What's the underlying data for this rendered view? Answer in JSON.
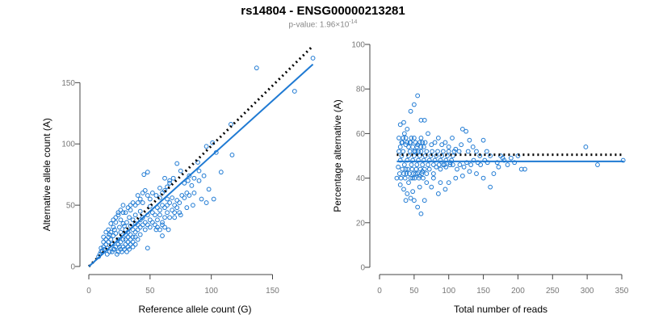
{
  "title": "rs14804 - ENSG00000213281",
  "subtitle": {
    "prefix": "p-value: 1.96×10",
    "exponent": "-14"
  },
  "colors": {
    "points": "#1f7ad3",
    "fit_line": "#1f7ad3",
    "reference_line": "#000000",
    "axis": "#444444"
  },
  "chart_data": [
    {
      "type": "scatter",
      "xlabel": "Reference allele count (G)",
      "ylabel": "Alternative allele count (A)",
      "xlim": [
        0,
        180
      ],
      "ylim": [
        0,
        170
      ],
      "xticks": [
        0,
        50,
        100,
        150
      ],
      "yticks": [
        0,
        50,
        100,
        150
      ],
      "fit_line": {
        "from": [
          0,
          0
        ],
        "to": [
          183,
          165
        ]
      },
      "reference_line": {
        "from": [
          0,
          0
        ],
        "to": [
          183,
          180
        ],
        "style": "dotted"
      },
      "points": [
        [
          137,
          162
        ],
        [
          183,
          170
        ],
        [
          168,
          143
        ],
        [
          116,
          116
        ],
        [
          117,
          91
        ],
        [
          101,
          101
        ],
        [
          104,
          93
        ],
        [
          108,
          77
        ],
        [
          96,
          98
        ],
        [
          89,
          85
        ],
        [
          98,
          63
        ],
        [
          102,
          55
        ],
        [
          86,
          60
        ],
        [
          90,
          78
        ],
        [
          75,
          78
        ],
        [
          72,
          84
        ],
        [
          81,
          70
        ],
        [
          69,
          72
        ],
        [
          66,
          68
        ],
        [
          64,
          55
        ],
        [
          62,
          62
        ],
        [
          58,
          64
        ],
        [
          55,
          58
        ],
        [
          52,
          60
        ],
        [
          50,
          49
        ],
        [
          48,
          77
        ],
        [
          45,
          75
        ],
        [
          44,
          52
        ],
        [
          42,
          45
        ],
        [
          40,
          52
        ],
        [
          38,
          42
        ],
        [
          36,
          38
        ],
        [
          34,
          46
        ],
        [
          33,
          40
        ],
        [
          31,
          36
        ],
        [
          29,
          33
        ],
        [
          28,
          44
        ],
        [
          26,
          28
        ],
        [
          25,
          32
        ],
        [
          24,
          22
        ],
        [
          22,
          27
        ],
        [
          21,
          30
        ],
        [
          20,
          25
        ],
        [
          19,
          18
        ],
        [
          18,
          22
        ],
        [
          17,
          26
        ],
        [
          16,
          20
        ],
        [
          15,
          15
        ],
        [
          14,
          18
        ],
        [
          13,
          14
        ],
        [
          12,
          16
        ],
        [
          11,
          13
        ],
        [
          10,
          15
        ],
        [
          12,
          24
        ],
        [
          14,
          28
        ],
        [
          16,
          30
        ],
        [
          18,
          35
        ],
        [
          20,
          38
        ],
        [
          22,
          40
        ],
        [
          24,
          44
        ],
        [
          26,
          38
        ],
        [
          28,
          35
        ],
        [
          30,
          30
        ],
        [
          32,
          28
        ],
        [
          34,
          33
        ],
        [
          36,
          30
        ],
        [
          38,
          35
        ],
        [
          40,
          34
        ],
        [
          42,
          38
        ],
        [
          44,
          40
        ],
        [
          46,
          36
        ],
        [
          48,
          42
        ],
        [
          50,
          38
        ],
        [
          52,
          44
        ],
        [
          54,
          42
        ],
        [
          56,
          48
        ],
        [
          58,
          46
        ],
        [
          60,
          50
        ],
        [
          62,
          48
        ],
        [
          64,
          50
        ],
        [
          66,
          52
        ],
        [
          68,
          56
        ],
        [
          70,
          50
        ],
        [
          72,
          54
        ],
        [
          74,
          52
        ],
        [
          76,
          58
        ],
        [
          78,
          56
        ],
        [
          80,
          60
        ],
        [
          82,
          58
        ],
        [
          84,
          66
        ],
        [
          56,
          38
        ],
        [
          58,
          42
        ],
        [
          60,
          36
        ],
        [
          62,
          40
        ],
        [
          64,
          44
        ],
        [
          66,
          40
        ],
        [
          68,
          46
        ],
        [
          70,
          44
        ],
        [
          72,
          48
        ],
        [
          74,
          44
        ],
        [
          50,
          55
        ],
        [
          48,
          58
        ],
        [
          46,
          62
        ],
        [
          44,
          60
        ],
        [
          42,
          55
        ],
        [
          40,
          58
        ],
        [
          38,
          50
        ],
        [
          36,
          52
        ],
        [
          34,
          50
        ],
        [
          32,
          48
        ],
        [
          30,
          44
        ],
        [
          28,
          50
        ],
        [
          26,
          46
        ],
        [
          24,
          42
        ],
        [
          22,
          36
        ],
        [
          20,
          32
        ],
        [
          18,
          28
        ],
        [
          16,
          24
        ],
        [
          14,
          22
        ],
        [
          12,
          20
        ],
        [
          10,
          12
        ],
        [
          9,
          10
        ],
        [
          8,
          8
        ],
        [
          30,
          22
        ],
        [
          32,
          24
        ],
        [
          34,
          26
        ],
        [
          36,
          24
        ],
        [
          38,
          28
        ],
        [
          40,
          30
        ],
        [
          42,
          32
        ],
        [
          44,
          34
        ],
        [
          46,
          30
        ],
        [
          48,
          34
        ],
        [
          50,
          32
        ],
        [
          52,
          36
        ],
        [
          54,
          34
        ],
        [
          56,
          32
        ],
        [
          58,
          30
        ],
        [
          60,
          34
        ],
        [
          62,
          32
        ],
        [
          48,
          15
        ],
        [
          55,
          30
        ],
        [
          60,
          25
        ],
        [
          65,
          30
        ],
        [
          70,
          40
        ],
        [
          75,
          42
        ],
        [
          80,
          48
        ],
        [
          85,
          50
        ],
        [
          92,
          55
        ],
        [
          96,
          52
        ],
        [
          78,
          68
        ],
        [
          82,
          74
        ],
        [
          86,
          72
        ],
        [
          90,
          70
        ],
        [
          94,
          74
        ],
        [
          66,
          70
        ],
        [
          64,
          65
        ],
        [
          62,
          72
        ],
        [
          60,
          60
        ],
        [
          58,
          56
        ],
        [
          24,
          18
        ],
        [
          26,
          20
        ],
        [
          28,
          22
        ],
        [
          30,
          26
        ],
        [
          32,
          20
        ],
        [
          34,
          22
        ],
        [
          36,
          20
        ],
        [
          38,
          24
        ],
        [
          40,
          22
        ],
        [
          42,
          26
        ],
        [
          20,
          14
        ],
        [
          22,
          16
        ],
        [
          24,
          12
        ],
        [
          26,
          14
        ],
        [
          28,
          16
        ],
        [
          30,
          18
        ],
        [
          32,
          16
        ],
        [
          34,
          18
        ],
        [
          36,
          16
        ],
        [
          38,
          18
        ],
        [
          15,
          10
        ],
        [
          17,
          12
        ],
        [
          19,
          12
        ],
        [
          21,
          14
        ],
        [
          23,
          10
        ],
        [
          25,
          16
        ],
        [
          27,
          12
        ],
        [
          29,
          14
        ],
        [
          31,
          12
        ],
        [
          33,
          14
        ]
      ]
    },
    {
      "type": "scatter",
      "xlabel": "Total number of reads",
      "ylabel": "Percentage alternative (A)",
      "xlim": [
        0,
        350
      ],
      "ylim": [
        0,
        100
      ],
      "xticks": [
        0,
        50,
        100,
        150,
        200,
        250,
        300,
        350
      ],
      "yticks": [
        0,
        20,
        40,
        60,
        80,
        100
      ],
      "fit_line": {
        "from": [
          25,
          47.5
        ],
        "to": [
          353,
          47.5
        ]
      },
      "reference_line": {
        "from": [
          25,
          50.5
        ],
        "to": [
          353,
          50.5
        ],
        "style": "dotted"
      },
      "points": [
        [
          55,
          77
        ],
        [
          50,
          73
        ],
        [
          45,
          70
        ],
        [
          35,
          65
        ],
        [
          30,
          64
        ],
        [
          40,
          62
        ],
        [
          60,
          66
        ],
        [
          65,
          66
        ],
        [
          70,
          60
        ],
        [
          120,
          62
        ],
        [
          125,
          61
        ],
        [
          130,
          57
        ],
        [
          150,
          57
        ],
        [
          50,
          58
        ],
        [
          45,
          56
        ],
        [
          38,
          55
        ],
        [
          33,
          56
        ],
        [
          28,
          58
        ],
        [
          55,
          55
        ],
        [
          60,
          54
        ],
        [
          75,
          55
        ],
        [
          80,
          56
        ],
        [
          90,
          55
        ],
        [
          100,
          54
        ],
        [
          110,
          53
        ],
        [
          115,
          52
        ],
        [
          140,
          52
        ],
        [
          160,
          50
        ],
        [
          175,
          50
        ],
        [
          200,
          50
        ],
        [
          298,
          54
        ],
        [
          352,
          48
        ],
        [
          315,
          46
        ],
        [
          190,
          49
        ],
        [
          180,
          48
        ],
        [
          170,
          47
        ],
        [
          165,
          42
        ],
        [
          160,
          36
        ],
        [
          150,
          40
        ],
        [
          140,
          42
        ],
        [
          130,
          43
        ],
        [
          120,
          41
        ],
        [
          110,
          40
        ],
        [
          100,
          38
        ],
        [
          95,
          35
        ],
        [
          85,
          33
        ],
        [
          75,
          36
        ],
        [
          65,
          30
        ],
        [
          60,
          24
        ],
        [
          55,
          27
        ],
        [
          50,
          30
        ],
        [
          45,
          31
        ],
        [
          40,
          33
        ],
        [
          35,
          35
        ],
        [
          30,
          37
        ],
        [
          25,
          40
        ],
        [
          42,
          38
        ],
        [
          48,
          40
        ],
        [
          52,
          42
        ],
        [
          58,
          41
        ],
        [
          62,
          43
        ],
        [
          68,
          42
        ],
        [
          72,
          44
        ],
        [
          78,
          42
        ],
        [
          82,
          45
        ],
        [
          88,
          44
        ],
        [
          92,
          46
        ],
        [
          96,
          45
        ],
        [
          102,
          47
        ],
        [
          106,
          46
        ],
        [
          112,
          44
        ],
        [
          116,
          46
        ],
        [
          122,
          45
        ],
        [
          126,
          47
        ],
        [
          132,
          46
        ],
        [
          136,
          48
        ],
        [
          142,
          47
        ],
        [
          146,
          46
        ],
        [
          152,
          48
        ],
        [
          156,
          47
        ],
        [
          30,
          48
        ],
        [
          32,
          50
        ],
        [
          34,
          52
        ],
        [
          36,
          46
        ],
        [
          38,
          44
        ],
        [
          40,
          48
        ],
        [
          42,
          50
        ],
        [
          44,
          52
        ],
        [
          46,
          46
        ],
        [
          48,
          48
        ],
        [
          50,
          50
        ],
        [
          52,
          52
        ],
        [
          54,
          46
        ],
        [
          56,
          48
        ],
        [
          58,
          50
        ],
        [
          60,
          52
        ],
        [
          62,
          46
        ],
        [
          64,
          48
        ],
        [
          66,
          50
        ],
        [
          68,
          52
        ],
        [
          70,
          46
        ],
        [
          72,
          48
        ],
        [
          74,
          50
        ],
        [
          76,
          52
        ],
        [
          78,
          46
        ],
        [
          80,
          48
        ],
        [
          82,
          50
        ],
        [
          84,
          52
        ],
        [
          86,
          46
        ],
        [
          88,
          48
        ],
        [
          90,
          50
        ],
        [
          92,
          52
        ],
        [
          94,
          46
        ],
        [
          96,
          48
        ],
        [
          98,
          50
        ],
        [
          100,
          52
        ],
        [
          102,
          46
        ],
        [
          104,
          48
        ],
        [
          106,
          50
        ],
        [
          108,
          52
        ],
        [
          27,
          45
        ],
        [
          29,
          42
        ],
        [
          31,
          40
        ],
        [
          33,
          44
        ],
        [
          35,
          42
        ],
        [
          37,
          40
        ],
        [
          39,
          42
        ],
        [
          41,
          44
        ],
        [
          43,
          42
        ],
        [
          45,
          40
        ],
        [
          47,
          44
        ],
        [
          49,
          42
        ],
        [
          51,
          40
        ],
        [
          53,
          44
        ],
        [
          55,
          42
        ],
        [
          57,
          40
        ],
        [
          59,
          44
        ],
        [
          61,
          42
        ],
        [
          63,
          40
        ],
        [
          65,
          44
        ],
        [
          28,
          52
        ],
        [
          30,
          54
        ],
        [
          32,
          56
        ],
        [
          34,
          58
        ],
        [
          36,
          60
        ],
        [
          38,
          58
        ],
        [
          40,
          56
        ],
        [
          42,
          54
        ],
        [
          44,
          56
        ],
        [
          46,
          58
        ],
        [
          48,
          54
        ],
        [
          50,
          52
        ],
        [
          52,
          56
        ],
        [
          54,
          54
        ],
        [
          56,
          52
        ],
        [
          58,
          56
        ],
        [
          60,
          58
        ],
        [
          62,
          56
        ],
        [
          64,
          54
        ],
        [
          66,
          56
        ],
        [
          85,
          58
        ],
        [
          95,
          56
        ],
        [
          105,
          58
        ],
        [
          118,
          55
        ],
        [
          128,
          52
        ],
        [
          135,
          54
        ],
        [
          145,
          50
        ],
        [
          155,
          52
        ],
        [
          185,
          46
        ],
        [
          205,
          44
        ],
        [
          210,
          44
        ],
        [
          172,
          45
        ],
        [
          178,
          49
        ],
        [
          195,
          47
        ],
        [
          88,
          38
        ],
        [
          78,
          40
        ],
        [
          68,
          38
        ],
        [
          58,
          36
        ],
        [
          48,
          34
        ],
        [
          38,
          30
        ]
      ]
    }
  ]
}
